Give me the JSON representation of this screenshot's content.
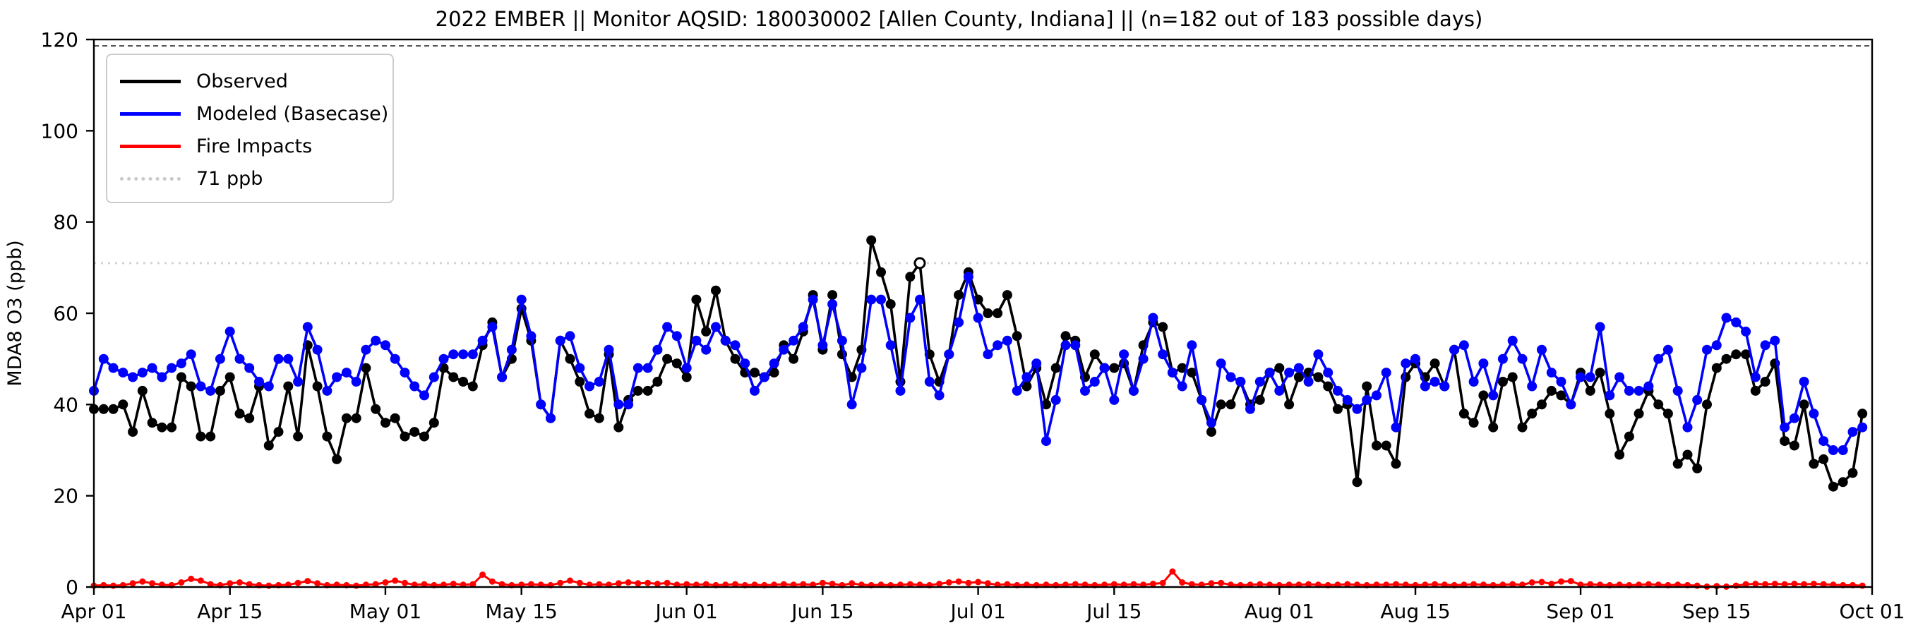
{
  "title": "2022 EMBER || Monitor AQSID: 180030002 [Allen County, Indiana] || (n=182 out of 183 possible days)",
  "legend": {
    "observed_label": "Observed",
    "modeled_label": "Modeled (Basecase)",
    "fire_label": "Fire Impacts",
    "threshold_label": "71 ppb"
  },
  "colors": {
    "observed": "#000000",
    "modeled": "#0000ff",
    "fire": "#ff0000",
    "threshold": "#d3d3d3",
    "axis": "#000000"
  },
  "chart_data": {
    "type": "line",
    "title": "2022 EMBER || Monitor AQSID: 180030002 [Allen County, Indiana] || (n=182 out of 183 possible days)",
    "xlabel": "",
    "ylabel": "MDA8 O3 (ppb)",
    "ylim": [
      0,
      120
    ],
    "yticks": [
      0,
      20,
      40,
      60,
      80,
      100,
      120
    ],
    "x_start_date": "Apr 01",
    "x_days_total": 183,
    "xticks": [
      {
        "day": 0,
        "label": "Apr 01"
      },
      {
        "day": 14,
        "label": "Apr 15"
      },
      {
        "day": 30,
        "label": "May 01"
      },
      {
        "day": 44,
        "label": "May 15"
      },
      {
        "day": 61,
        "label": "Jun 01"
      },
      {
        "day": 75,
        "label": "Jun 15"
      },
      {
        "day": 91,
        "label": "Jul 01"
      },
      {
        "day": 105,
        "label": "Jul 15"
      },
      {
        "day": 122,
        "label": "Aug 01"
      },
      {
        "day": 136,
        "label": "Aug 15"
      },
      {
        "day": 153,
        "label": "Sep 01"
      },
      {
        "day": 167,
        "label": "Sep 15"
      },
      {
        "day": 183,
        "label": "Oct 01"
      }
    ],
    "threshold_ppb": 71,
    "legend_position": "upper left",
    "grid": false,
    "open_marker_series": "Observed",
    "open_marker_day": 85,
    "series": [
      {
        "name": "Observed",
        "color": "#000000",
        "values": [
          39,
          39,
          39,
          40,
          34,
          43,
          36,
          35,
          35,
          46,
          44,
          33,
          33,
          43,
          46,
          38,
          37,
          44,
          31,
          34,
          44,
          33,
          53,
          44,
          33,
          28,
          37,
          37,
          48,
          39,
          36,
          37,
          33,
          34,
          33,
          36,
          48,
          46,
          45,
          44,
          53,
          58,
          46,
          50,
          61,
          54,
          40,
          37,
          54,
          50,
          45,
          38,
          37,
          51,
          35,
          41,
          43,
          43,
          45,
          50,
          49,
          46,
          63,
          56,
          65,
          54,
          50,
          47,
          47,
          46,
          47,
          53,
          50,
          56,
          64,
          52,
          64,
          51,
          46,
          52,
          76,
          69,
          62,
          45,
          68,
          71,
          51,
          45,
          51,
          64,
          69,
          63,
          60,
          60,
          64,
          55,
          44,
          48,
          40,
          48,
          55,
          54,
          46,
          51,
          48,
          48,
          49,
          43,
          53,
          58,
          57,
          47,
          48,
          47,
          41,
          34,
          40,
          40,
          45,
          40,
          41,
          47,
          48,
          40,
          46,
          47,
          46,
          44,
          39,
          40,
          23,
          44,
          31,
          31,
          27,
          46,
          49,
          46,
          49,
          44,
          52,
          38,
          36,
          42,
          35,
          45,
          46,
          35,
          38,
          40,
          43,
          42,
          40,
          47,
          43,
          47,
          38,
          29,
          33,
          38,
          43,
          40,
          38,
          27,
          29,
          26,
          40,
          48,
          50,
          51,
          51,
          43,
          45,
          49,
          32,
          31,
          40,
          27,
          28,
          22,
          23,
          25,
          38
        ]
      },
      {
        "name": "Modeled (Basecase)",
        "color": "#0000ff",
        "values": [
          43,
          50,
          48,
          47,
          46,
          47,
          48,
          46,
          48,
          49,
          51,
          44,
          43,
          50,
          56,
          50,
          48,
          45,
          44,
          50,
          50,
          45,
          57,
          52,
          43,
          46,
          47,
          45,
          52,
          54,
          53,
          50,
          47,
          44,
          42,
          46,
          50,
          51,
          51,
          51,
          54,
          57,
          46,
          52,
          63,
          55,
          40,
          37,
          54,
          55,
          48,
          44,
          45,
          52,
          40,
          40,
          48,
          48,
          52,
          57,
          55,
          48,
          54,
          52,
          57,
          54,
          53,
          49,
          43,
          46,
          49,
          52,
          54,
          57,
          63,
          53,
          62,
          54,
          40,
          48,
          63,
          63,
          53,
          43,
          59,
          63,
          45,
          42,
          51,
          58,
          68,
          59,
          51,
          53,
          54,
          43,
          46,
          49,
          32,
          41,
          53,
          53,
          43,
          45,
          48,
          41,
          51,
          43,
          50,
          59,
          51,
          47,
          44,
          53,
          41,
          36,
          49,
          46,
          45,
          39,
          45,
          47,
          43,
          47,
          48,
          45,
          51,
          47,
          43,
          41,
          39,
          41,
          42,
          47,
          35,
          49,
          50,
          44,
          45,
          44,
          52,
          53,
          45,
          49,
          42,
          50,
          54,
          50,
          44,
          52,
          47,
          45,
          40,
          46,
          46,
          57,
          42,
          46,
          43,
          43,
          44,
          50,
          52,
          43,
          35,
          41,
          52,
          53,
          59,
          58,
          56,
          46,
          53,
          54,
          35,
          37,
          45,
          38,
          32,
          30,
          30,
          34,
          35
        ]
      },
      {
        "name": "Fire Impacts",
        "color": "#ff0000",
        "values": [
          0.3,
          0.4,
          0.3,
          0.4,
          0.8,
          1.2,
          0.8,
          0.5,
          0.4,
          1.0,
          1.8,
          1.4,
          0.6,
          0.4,
          0.8,
          1.0,
          0.6,
          0.4,
          0.3,
          0.4,
          0.5,
          0.9,
          1.3,
          0.8,
          0.4,
          0.5,
          0.4,
          0.3,
          0.5,
          0.6,
          1.0,
          1.4,
          0.9,
          0.5,
          0.6,
          0.4,
          0.5,
          0.7,
          0.5,
          0.6,
          2.7,
          1.2,
          0.6,
          0.4,
          0.5,
          0.6,
          0.5,
          0.4,
          0.9,
          1.4,
          0.9,
          0.5,
          0.6,
          0.5,
          0.8,
          1.0,
          0.8,
          0.9,
          0.7,
          0.9,
          0.5,
          0.6,
          0.5,
          0.6,
          0.4,
          0.5,
          0.6,
          0.4,
          0.5,
          0.4,
          0.5,
          0.6,
          0.5,
          0.6,
          0.5,
          0.9,
          0.7,
          0.4,
          0.8,
          0.5,
          0.4,
          0.5,
          0.4,
          0.5,
          0.6,
          0.5,
          0.4,
          0.7,
          1.0,
          1.2,
          0.9,
          1.1,
          0.8,
          0.5,
          0.6,
          0.4,
          0.5,
          0.4,
          0.5,
          0.4,
          0.5,
          0.6,
          0.5,
          0.4,
          0.5,
          0.6,
          0.5,
          0.6,
          0.5,
          0.7,
          0.9,
          3.4,
          1.0,
          0.6,
          0.5,
          0.8,
          0.9,
          0.5,
          0.4,
          0.5,
          0.6,
          0.5,
          0.4,
          0.5,
          0.5,
          0.6,
          0.5,
          0.4,
          0.5,
          0.6,
          0.5,
          0.4,
          0.5,
          0.5,
          0.6,
          0.5,
          0.4,
          0.5,
          0.6,
          0.5,
          0.4,
          0.5,
          0.6,
          0.5,
          0.4,
          0.5,
          0.6,
          0.5,
          1.0,
          1.1,
          0.7,
          1.2,
          1.3,
          0.5,
          0.6,
          0.5,
          0.4,
          0.5,
          0.4,
          0.5,
          0.6,
          0.5,
          0.4,
          0.5,
          0.4,
          0.3,
          0.1,
          0.2,
          0.1,
          0.3,
          0.6,
          0.7,
          0.6,
          0.7,
          0.6,
          0.7,
          0.6,
          0.7,
          0.6,
          0.5,
          0.4,
          0.4,
          0.3
        ]
      }
    ]
  }
}
